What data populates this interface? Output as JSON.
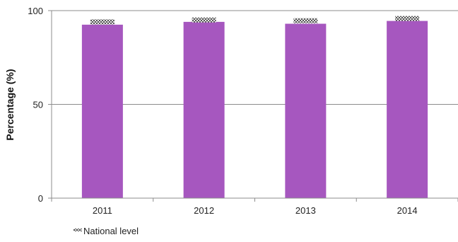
{
  "chart_data": {
    "type": "bar",
    "categories": [
      "2011",
      "2012",
      "2013",
      "2014"
    ],
    "series": [
      {
        "values": [
          92.5,
          94,
          93,
          94.5
        ],
        "color": "#a657bf"
      },
      {
        "name": "National level",
        "values": [
          94,
          95,
          94.6,
          95.8
        ],
        "style": "checkered-marker"
      }
    ],
    "ylabel": "Percentage (%)",
    "ylim": [
      0,
      100
    ],
    "yticks": [
      0,
      50,
      100
    ],
    "grid": true,
    "legend": "bottom-left"
  }
}
